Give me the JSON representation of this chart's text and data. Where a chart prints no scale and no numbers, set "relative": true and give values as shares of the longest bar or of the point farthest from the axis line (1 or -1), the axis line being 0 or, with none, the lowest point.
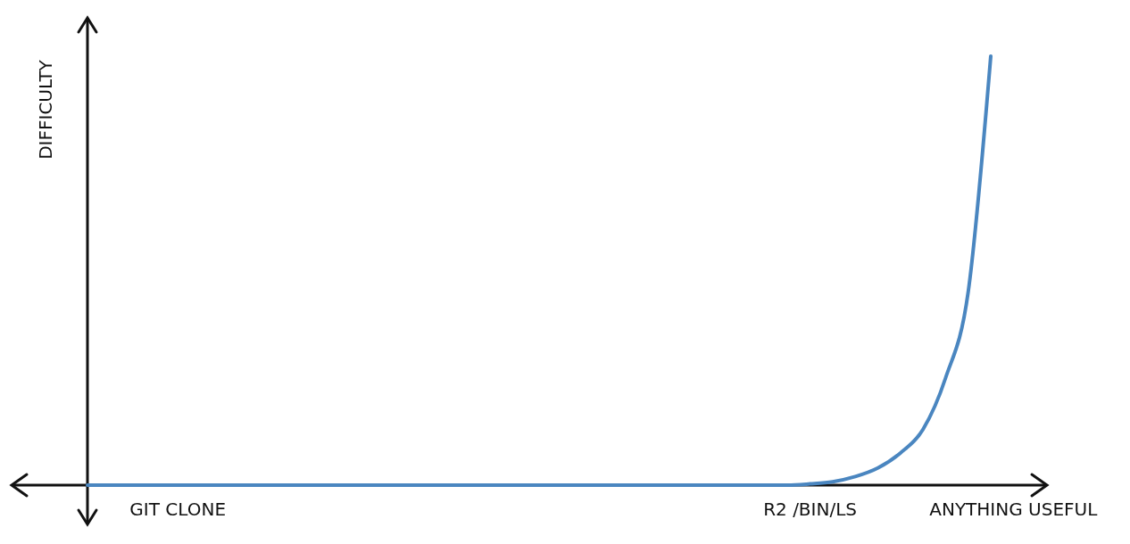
{
  "chart_data": {
    "type": "line",
    "relative": true,
    "ylabel": "DIFFICULTY",
    "categories": [
      null,
      null,
      null,
      null,
      "GIT CLONE",
      null,
      null,
      null,
      null,
      null,
      null,
      null,
      null,
      null,
      null,
      null,
      null,
      null,
      null,
      null,
      null,
      null,
      null,
      null,
      null,
      null,
      null,
      null,
      null,
      null,
      null,
      null,
      "R2 /BIN/LS",
      null,
      null,
      null,
      null,
      null,
      null,
      null,
      null,
      "ANYTHING USEFUL",
      null
    ],
    "series": [
      {
        "color": "#4a86c0",
        "values": [
          0,
          0,
          0,
          0,
          0,
          0,
          0,
          0,
          0,
          0,
          0,
          0,
          0,
          0,
          0,
          0,
          0,
          0,
          0,
          0,
          0,
          0,
          0,
          0,
          0,
          0,
          0,
          0,
          0,
          0,
          0,
          0,
          0.003,
          0.008,
          0.02,
          0.04,
          0.075,
          0.13,
          0.25,
          0.45,
          1,
          null,
          null
        ]
      }
    ],
    "marker": "none",
    "line_style": "solid"
  }
}
